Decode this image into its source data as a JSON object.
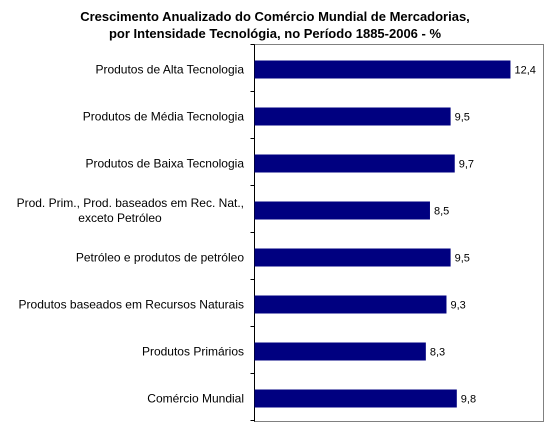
{
  "chart_data": {
    "type": "bar",
    "orientation": "horizontal",
    "title": [
      "Crescimento Anualizado do Comércio Mundial de Mercadorias,",
      "por Intensidade Tecnológia, no Período 1885-2006 - %"
    ],
    "categories": [
      [
        "Produtos de Alta Tecnologia"
      ],
      [
        "Produtos de Média Tecnologia"
      ],
      [
        "Produtos de Baixa Tecnologia"
      ],
      [
        "Prod. Prim., Prod. baseados em Rec. Nat.,",
        "exceto Petróleo"
      ],
      [
        "Petróleo e produtos de petróleo"
      ],
      [
        "Produtos baseados em Recursos Naturais"
      ],
      [
        "Produtos Primários"
      ],
      [
        "Comércio Mundial"
      ]
    ],
    "values": [
      12.4,
      9.5,
      9.7,
      8.5,
      9.5,
      9.3,
      8.3,
      9.8
    ],
    "value_labels": [
      "12,4",
      "9,5",
      "9,7",
      "8,5",
      "9,5",
      "9,3",
      "8,3",
      "9,8"
    ],
    "xlim": [
      0,
      14
    ],
    "bar_color": "#000080",
    "grid": false,
    "legend": "none"
  }
}
